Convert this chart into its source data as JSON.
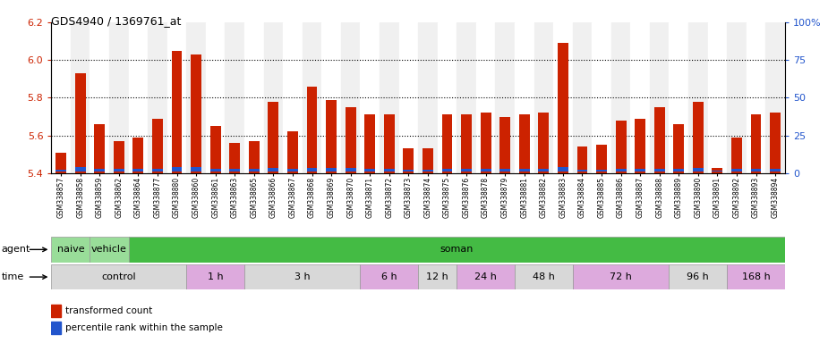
{
  "title": "GDS4940 / 1369761_at",
  "samples": [
    "GSM338857",
    "GSM338858",
    "GSM338859",
    "GSM338862",
    "GSM338864",
    "GSM338877",
    "GSM338880",
    "GSM338860",
    "GSM338861",
    "GSM338863",
    "GSM338865",
    "GSM338866",
    "GSM338867",
    "GSM338868",
    "GSM338869",
    "GSM338870",
    "GSM338871",
    "GSM338872",
    "GSM338873",
    "GSM338874",
    "GSM338875",
    "GSM338876",
    "GSM338878",
    "GSM338879",
    "GSM338881",
    "GSM338882",
    "GSM338883",
    "GSM338884",
    "GSM338885",
    "GSM338886",
    "GSM338887",
    "GSM338888",
    "GSM338889",
    "GSM338890",
    "GSM338891",
    "GSM338892",
    "GSM338893",
    "GSM338894"
  ],
  "transformed_count": [
    5.51,
    5.93,
    5.66,
    5.57,
    5.59,
    5.69,
    6.05,
    6.03,
    5.65,
    5.56,
    5.57,
    5.78,
    5.62,
    5.86,
    5.79,
    5.75,
    5.71,
    5.71,
    5.53,
    5.53,
    5.71,
    5.71,
    5.72,
    5.7,
    5.71,
    5.72,
    6.09,
    5.54,
    5.55,
    5.68,
    5.69,
    5.75,
    5.66,
    5.78,
    5.43,
    5.59,
    5.71,
    5.72
  ],
  "percentile_rank": [
    5,
    15,
    10,
    8,
    9,
    10,
    15,
    15,
    10,
    8,
    8,
    12,
    8,
    12,
    12,
    12,
    10,
    10,
    7,
    7,
    10,
    10,
    10,
    10,
    10,
    10,
    17,
    7,
    7,
    10,
    10,
    10,
    10,
    12,
    2,
    8,
    10,
    10
  ],
  "baseline": 5.4,
  "ylim_left": [
    5.4,
    6.2
  ],
  "ylim_right": [
    0,
    100
  ],
  "bar_color": "#cc2200",
  "blue_color": "#2255cc",
  "agent_groups": [
    {
      "label": "naive",
      "start": 0,
      "end": 2,
      "color": "#99dd99"
    },
    {
      "label": "vehicle",
      "start": 2,
      "end": 4,
      "color": "#99dd99"
    },
    {
      "label": "soman",
      "start": 4,
      "end": 38,
      "color": "#44bb44"
    }
  ],
  "time_groups": [
    {
      "label": "control",
      "start": 0,
      "end": 7,
      "color": "#d8d8d8"
    },
    {
      "label": "1 h",
      "start": 7,
      "end": 10,
      "color": "#ddaadd"
    },
    {
      "label": "3 h",
      "start": 10,
      "end": 16,
      "color": "#d8d8d8"
    },
    {
      "label": "6 h",
      "start": 16,
      "end": 19,
      "color": "#ddaadd"
    },
    {
      "label": "12 h",
      "start": 19,
      "end": 21,
      "color": "#d8d8d8"
    },
    {
      "label": "24 h",
      "start": 21,
      "end": 24,
      "color": "#ddaadd"
    },
    {
      "label": "48 h",
      "start": 24,
      "end": 27,
      "color": "#d8d8d8"
    },
    {
      "label": "72 h",
      "start": 27,
      "end": 32,
      "color": "#ddaadd"
    },
    {
      "label": "96 h",
      "start": 32,
      "end": 35,
      "color": "#d8d8d8"
    },
    {
      "label": "168 h",
      "start": 35,
      "end": 38,
      "color": "#ddaadd"
    }
  ],
  "left_yticks": [
    5.4,
    5.6,
    5.8,
    6.0,
    6.2
  ],
  "right_yticks": [
    0,
    25,
    50,
    75,
    100
  ],
  "grid_lines": [
    5.6,
    5.8,
    6.0
  ],
  "legend_items": [
    {
      "label": "transformed count",
      "color": "#cc2200"
    },
    {
      "label": "percentile rank within the sample",
      "color": "#2255cc"
    }
  ]
}
